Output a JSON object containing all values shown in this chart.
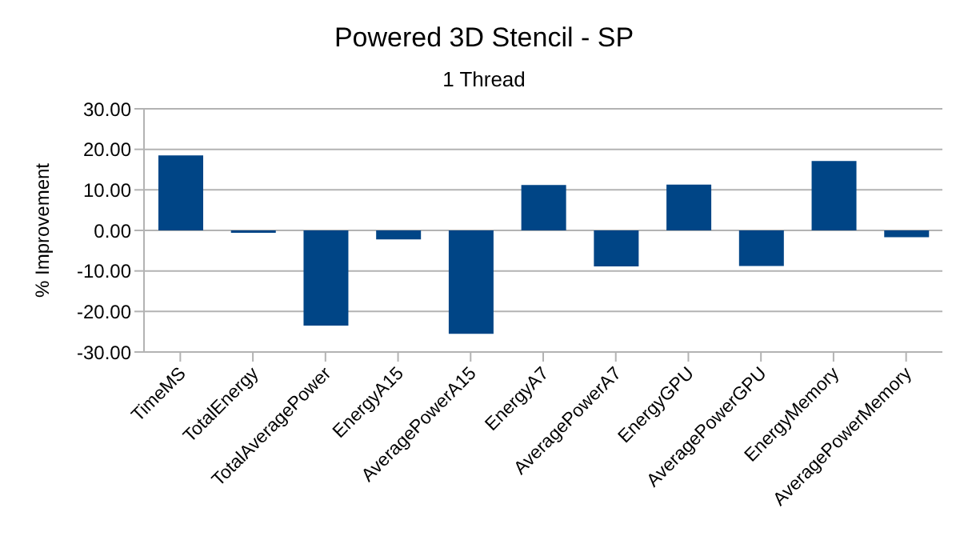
{
  "chart_data": {
    "type": "bar",
    "title": "Powered 3D Stencil - SP",
    "subtitle": "1 Thread",
    "ylabel": "% Improvement",
    "categories": [
      "TimeMS",
      "TotalEnergy",
      "TotalAveragePower",
      "EnergyA15",
      "AveragePowerA15",
      "EnergyA7",
      "AveragePowerA7",
      "EnergyGPU",
      "AveragePowerGPU",
      "EnergyMemory",
      "AveragePowerMemory"
    ],
    "values": [
      18.5,
      -0.6,
      -23.5,
      -2.2,
      -25.5,
      11.2,
      -8.9,
      11.3,
      -8.8,
      17.1,
      -1.7
    ],
    "color": "#004586",
    "ylim": [
      -30,
      30
    ],
    "yticks": [
      {
        "value": -30,
        "label": "-30.00"
      },
      {
        "value": -20,
        "label": "-20.00"
      },
      {
        "value": -10,
        "label": "-10.00"
      },
      {
        "value": 0,
        "label": "0.00"
      },
      {
        "value": 10,
        "label": "10.00"
      },
      {
        "value": 20,
        "label": "20.00"
      },
      {
        "value": 30,
        "label": "30.00"
      }
    ],
    "grid": "y",
    "legend": false
  }
}
